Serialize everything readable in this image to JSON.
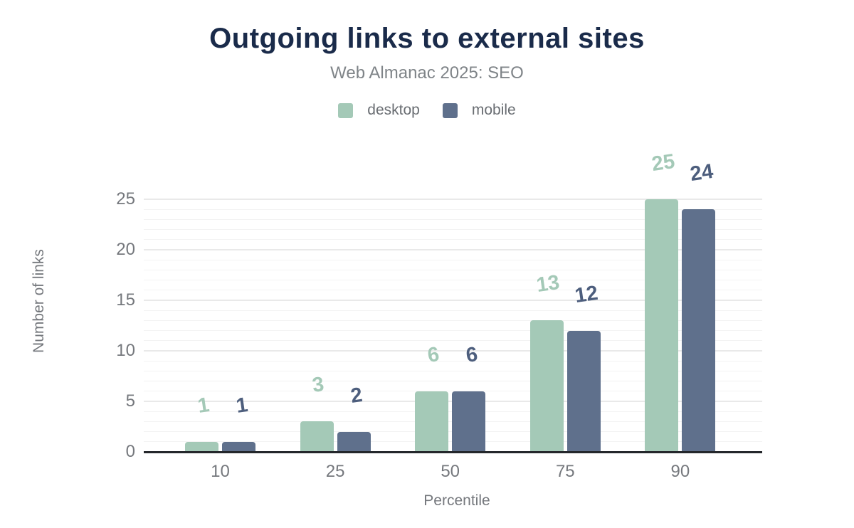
{
  "header": {
    "title": "Outgoing links to external sites",
    "subtitle": "Web Almanac 2025: SEO"
  },
  "legend": {
    "items": [
      {
        "name": "desktop",
        "label": "desktop",
        "color": "#a4c9b7"
      },
      {
        "name": "mobile",
        "label": "mobile",
        "color": "#5f708c"
      }
    ]
  },
  "chart_data": {
    "type": "bar",
    "title": "Outgoing links to external sites",
    "subtitle": "Web Almanac 2025: SEO",
    "categories": [
      "10",
      "25",
      "50",
      "75",
      "90"
    ],
    "series": [
      {
        "name": "desktop",
        "values": [
          1,
          3,
          6,
          13,
          25
        ],
        "color": "#a4c9b7",
        "label_color": "#a4c9b7"
      },
      {
        "name": "mobile",
        "values": [
          1,
          2,
          6,
          12,
          24
        ],
        "color": "#5f708c",
        "label_color": "#4d5e7d"
      }
    ],
    "xlabel": "Percentile",
    "ylabel": "Number of links",
    "yticks": [
      0,
      5,
      10,
      15,
      20,
      25
    ],
    "ylim": [
      0,
      25
    ],
    "grid": {
      "orientation": "horizontal",
      "minor_step": 1,
      "major_step": 5,
      "minor_color": "#f3f3f3",
      "major_color": "#e9e9e9"
    },
    "legend_position": "top",
    "data_labels_shown": true,
    "axis_line_color": "#24272b",
    "tick_label_color": "#75787d"
  }
}
